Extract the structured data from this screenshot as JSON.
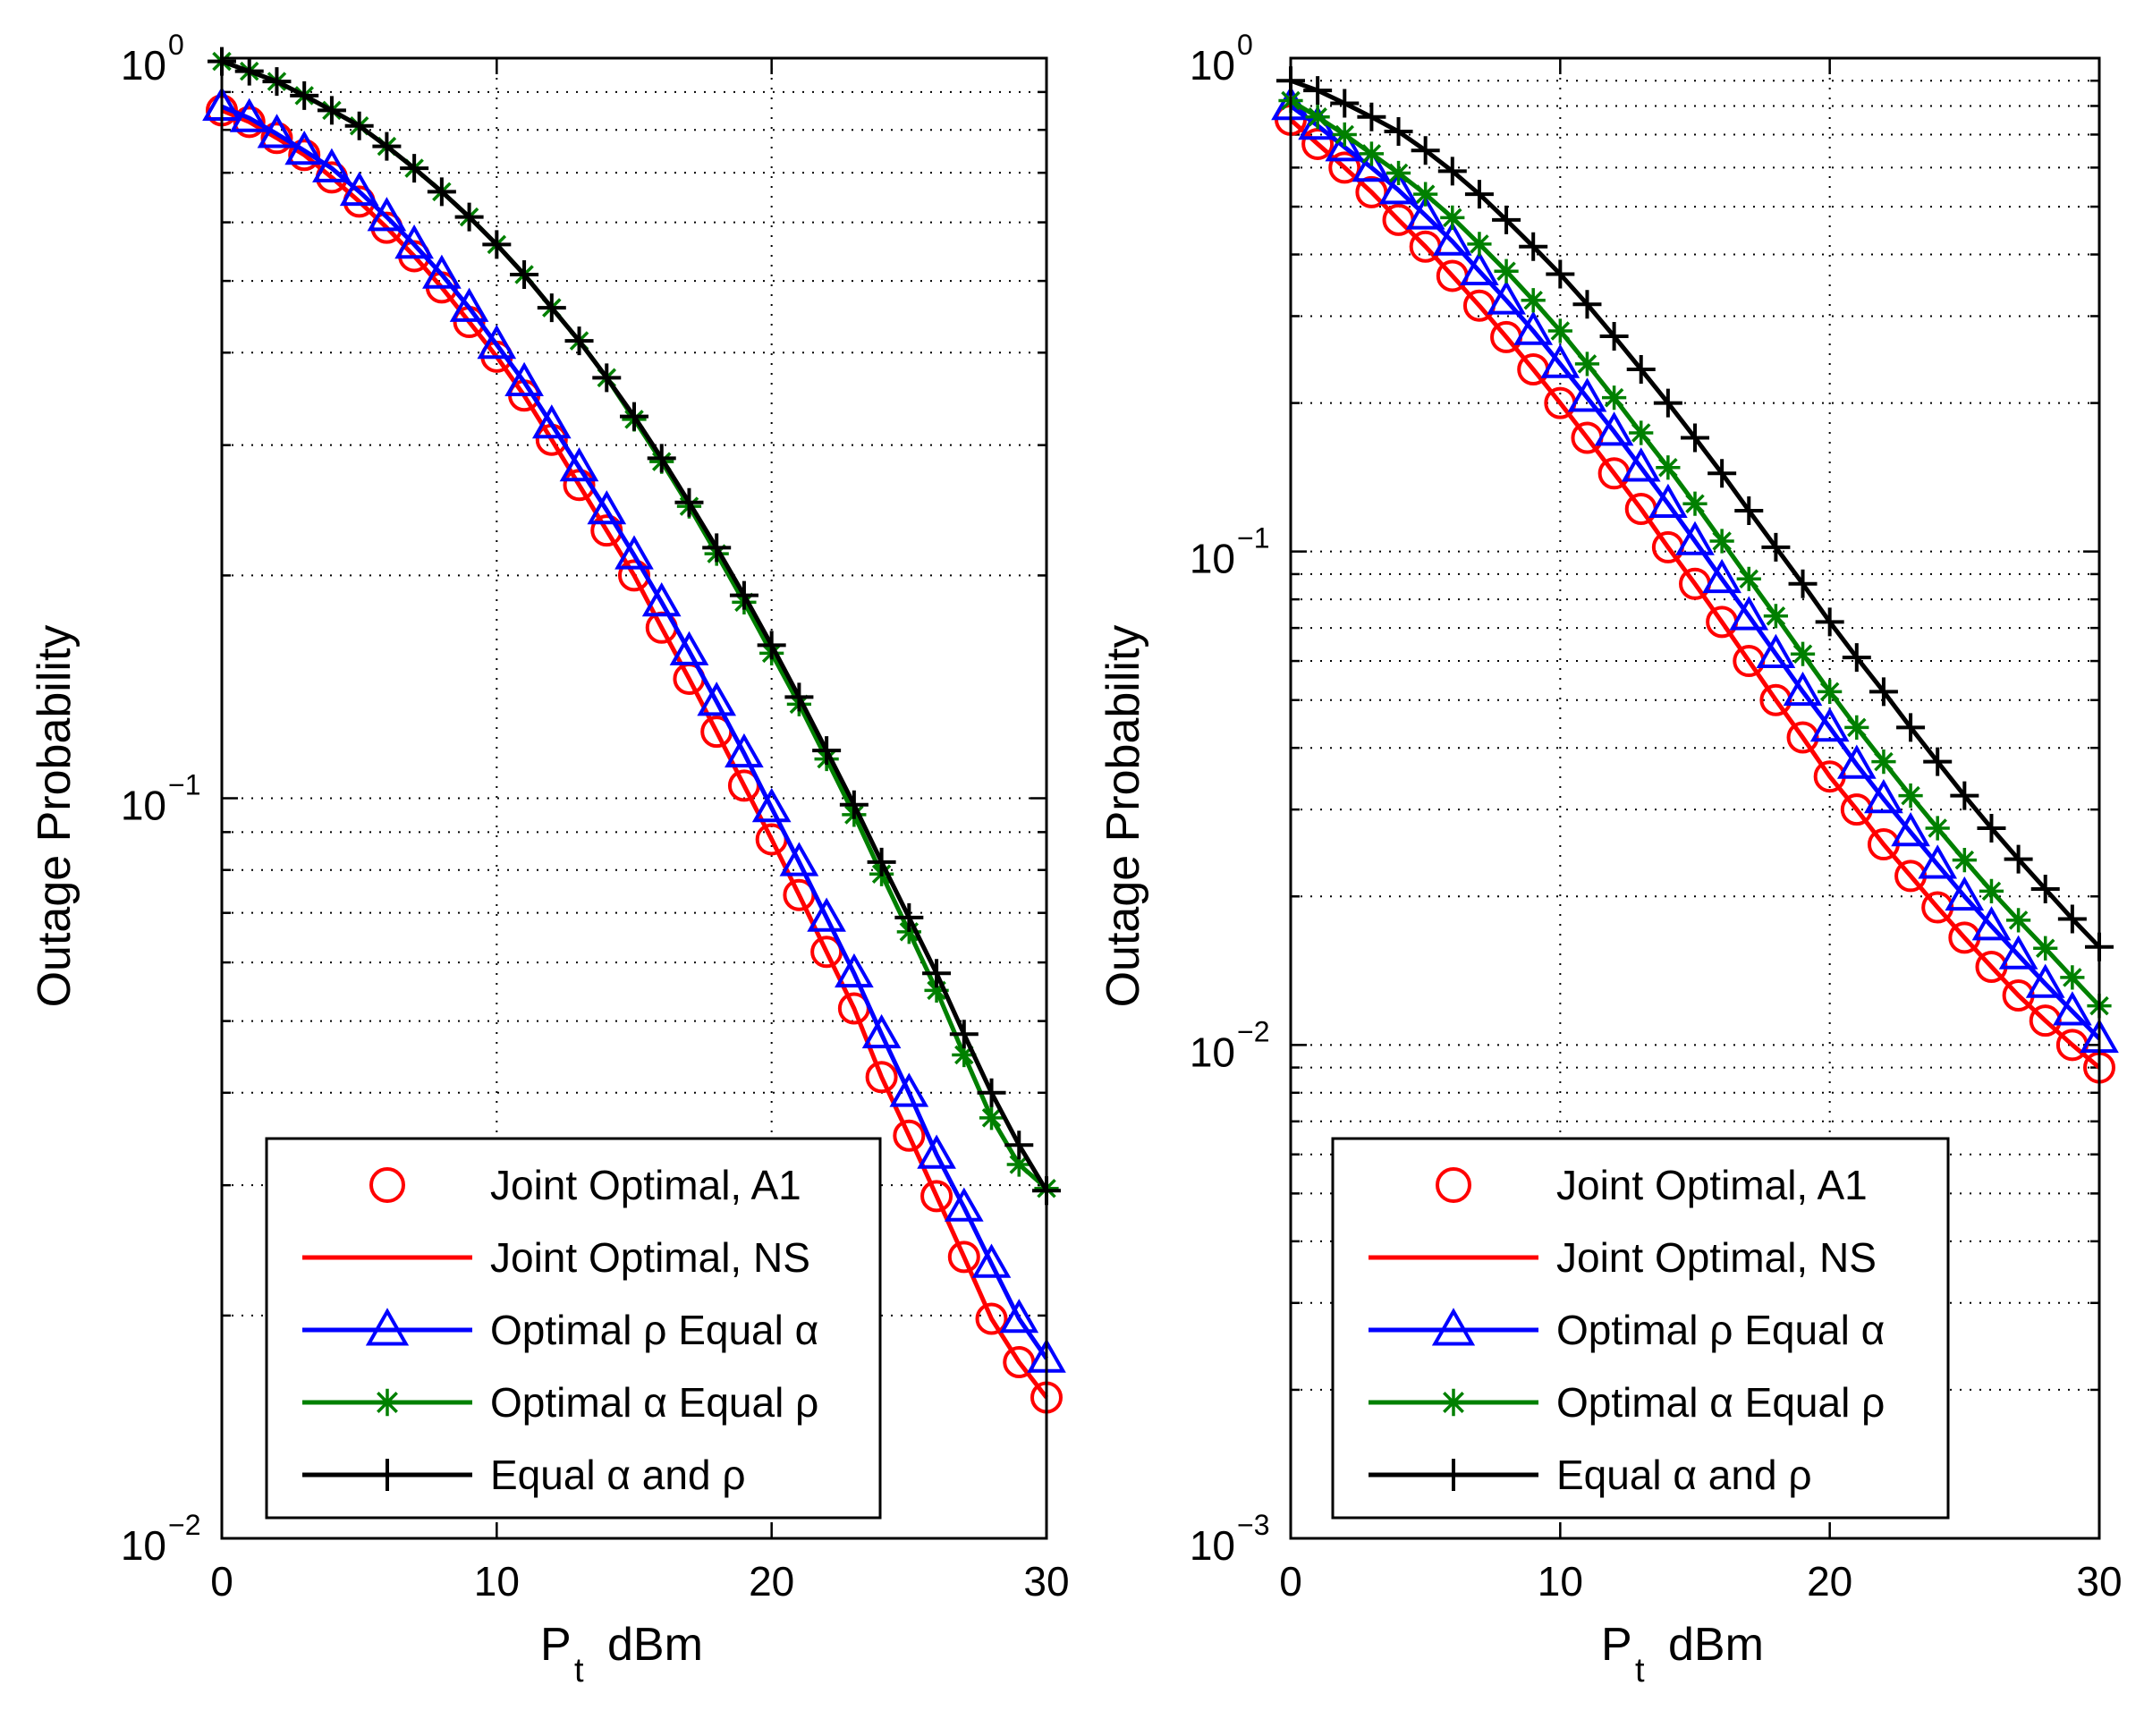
{
  "chart_data": [
    {
      "type": "line",
      "panel": "left",
      "yscale": "log",
      "xlabel_main": "P",
      "xlabel_sub": "t",
      "xlabel_unit": "dBm",
      "ylabel": "Outage Probability",
      "xlim": [
        0,
        30
      ],
      "ylim": [
        0.01,
        1
      ],
      "xticks": [
        0,
        10,
        20,
        30
      ],
      "xtick_labels": [
        "0",
        "10",
        "20",
        "30"
      ],
      "ytick_labels": [
        {
          "value": 1,
          "base": "10",
          "exp": "0"
        },
        {
          "value": 0.1,
          "base": "10",
          "exp": "−1"
        },
        {
          "value": 0.01,
          "base": "10",
          "exp": "−2"
        }
      ],
      "grid": true,
      "legend_position": "bottom-right",
      "x": [
        0,
        1,
        2,
        3,
        4,
        5,
        6,
        7,
        8,
        9,
        10,
        11,
        12,
        13,
        14,
        15,
        16,
        17,
        18,
        19,
        20,
        21,
        22,
        23,
        24,
        25,
        26,
        27,
        28,
        29,
        30
      ],
      "series": [
        {
          "name": "Joint Optimal, A1",
          "color": "#ff0000",
          "marker": "circle",
          "line": false,
          "values": [
            0.85,
            0.82,
            0.78,
            0.74,
            0.69,
            0.64,
            0.59,
            0.54,
            0.49,
            0.44,
            0.395,
            0.35,
            0.305,
            0.265,
            0.23,
            0.2,
            0.17,
            0.145,
            0.123,
            0.104,
            0.088,
            0.074,
            0.062,
            0.052,
            0.042,
            0.035,
            0.029,
            0.024,
            0.0198,
            0.0173,
            0.0155
          ]
        },
        {
          "name": "Joint Optimal, NS",
          "color": "#ff0000",
          "marker": "none",
          "line": true,
          "values": [
            0.85,
            0.82,
            0.78,
            0.74,
            0.69,
            0.64,
            0.59,
            0.54,
            0.49,
            0.44,
            0.395,
            0.35,
            0.305,
            0.265,
            0.23,
            0.2,
            0.17,
            0.145,
            0.123,
            0.104,
            0.088,
            0.074,
            0.062,
            0.052,
            0.042,
            0.035,
            0.029,
            0.024,
            0.0198,
            0.0173,
            0.0155
          ]
        },
        {
          "name": "Optimal ρ Equal α",
          "color": "#0000ff",
          "marker": "triangle",
          "line": true,
          "values": [
            0.86,
            0.83,
            0.79,
            0.75,
            0.71,
            0.66,
            0.61,
            0.56,
            0.51,
            0.46,
            0.41,
            0.365,
            0.32,
            0.28,
            0.245,
            0.213,
            0.184,
            0.158,
            0.135,
            0.115,
            0.097,
            0.082,
            0.069,
            0.058,
            0.048,
            0.04,
            0.033,
            0.028,
            0.0235,
            0.0198,
            0.0175
          ]
        },
        {
          "name": "Optimal α Equal ρ",
          "color": "#008000",
          "marker": "asterisk",
          "line": true,
          "values": [
            0.99,
            0.96,
            0.93,
            0.89,
            0.85,
            0.81,
            0.76,
            0.71,
            0.66,
            0.61,
            0.56,
            0.51,
            0.46,
            0.415,
            0.37,
            0.325,
            0.285,
            0.248,
            0.214,
            0.184,
            0.157,
            0.134,
            0.113,
            0.095,
            0.079,
            0.066,
            0.055,
            0.045,
            0.037,
            0.032,
            0.0297
          ]
        },
        {
          "name": "Equal α and ρ",
          "color": "#000000",
          "marker": "plus",
          "line": true,
          "values": [
            0.99,
            0.96,
            0.93,
            0.89,
            0.85,
            0.81,
            0.76,
            0.71,
            0.66,
            0.61,
            0.56,
            0.51,
            0.46,
            0.415,
            0.37,
            0.328,
            0.288,
            0.251,
            0.218,
            0.188,
            0.161,
            0.137,
            0.116,
            0.098,
            0.082,
            0.069,
            0.058,
            0.048,
            0.04,
            0.034,
            0.0295
          ]
        }
      ]
    },
    {
      "type": "line",
      "panel": "right",
      "yscale": "log",
      "xlabel_main": "P",
      "xlabel_sub": "t",
      "xlabel_unit": "dBm",
      "ylabel": "Outage Probability",
      "xlim": [
        0,
        30
      ],
      "ylim": [
        0.001,
        1
      ],
      "xticks": [
        0,
        10,
        20,
        30
      ],
      "xtick_labels": [
        "0",
        "10",
        "20",
        "30"
      ],
      "ytick_labels": [
        {
          "value": 1,
          "base": "10",
          "exp": "0"
        },
        {
          "value": 0.1,
          "base": "10",
          "exp": "−1"
        },
        {
          "value": 0.01,
          "base": "10",
          "exp": "−2"
        },
        {
          "value": 0.001,
          "base": "10",
          "exp": "−3"
        }
      ],
      "grid": true,
      "legend_position": "bottom-right",
      "x": [
        0,
        1,
        2,
        3,
        4,
        5,
        6,
        7,
        8,
        9,
        10,
        11,
        12,
        13,
        14,
        15,
        16,
        17,
        18,
        19,
        20,
        21,
        22,
        23,
        24,
        25,
        26,
        27,
        28,
        29,
        30
      ],
      "series": [
        {
          "name": "Joint Optimal, A1",
          "color": "#ff0000",
          "marker": "circle",
          "line": false,
          "values": [
            0.75,
            0.67,
            0.6,
            0.535,
            0.47,
            0.415,
            0.362,
            0.315,
            0.272,
            0.234,
            0.2,
            0.17,
            0.144,
            0.122,
            0.102,
            0.086,
            0.072,
            0.06,
            0.05,
            0.042,
            0.035,
            0.03,
            0.0255,
            0.022,
            0.019,
            0.0165,
            0.0144,
            0.0126,
            0.0112,
            0.01,
            0.009
          ]
        },
        {
          "name": "Joint Optimal, NS",
          "color": "#ff0000",
          "marker": "none",
          "line": true,
          "values": [
            0.75,
            0.67,
            0.6,
            0.535,
            0.47,
            0.415,
            0.362,
            0.315,
            0.272,
            0.234,
            0.2,
            0.17,
            0.144,
            0.122,
            0.102,
            0.086,
            0.072,
            0.06,
            0.05,
            0.042,
            0.035,
            0.03,
            0.0255,
            0.022,
            0.019,
            0.0165,
            0.0144,
            0.0126,
            0.0112,
            0.01,
            0.009
          ]
        },
        {
          "name": "Optimal ρ Equal α",
          "color": "#0000ff",
          "marker": "triangle",
          "line": true,
          "values": [
            0.8,
            0.73,
            0.66,
            0.6,
            0.54,
            0.48,
            0.425,
            0.37,
            0.323,
            0.28,
            0.24,
            0.205,
            0.175,
            0.148,
            0.125,
            0.105,
            0.088,
            0.074,
            0.062,
            0.052,
            0.044,
            0.037,
            0.0315,
            0.027,
            0.0232,
            0.02,
            0.0174,
            0.0152,
            0.0133,
            0.0117,
            0.0103
          ]
        },
        {
          "name": "Optimal α Equal ρ",
          "color": "#008000",
          "marker": "asterisk",
          "line": true,
          "values": [
            0.82,
            0.76,
            0.7,
            0.64,
            0.585,
            0.53,
            0.475,
            0.42,
            0.37,
            0.323,
            0.28,
            0.24,
            0.205,
            0.174,
            0.148,
            0.125,
            0.105,
            0.088,
            0.074,
            0.062,
            0.052,
            0.044,
            0.0375,
            0.032,
            0.0275,
            0.0237,
            0.0205,
            0.0179,
            0.0157,
            0.0137,
            0.012
          ]
        },
        {
          "name": "Equal α and ρ",
          "color": "#000000",
          "marker": "plus",
          "line": true,
          "values": [
            0.9,
            0.86,
            0.81,
            0.76,
            0.71,
            0.65,
            0.59,
            0.53,
            0.47,
            0.415,
            0.365,
            0.317,
            0.273,
            0.234,
            0.2,
            0.17,
            0.144,
            0.121,
            0.102,
            0.086,
            0.072,
            0.061,
            0.052,
            0.044,
            0.0375,
            0.032,
            0.0275,
            0.0238,
            0.0207,
            0.018,
            0.0158
          ]
        }
      ]
    }
  ]
}
